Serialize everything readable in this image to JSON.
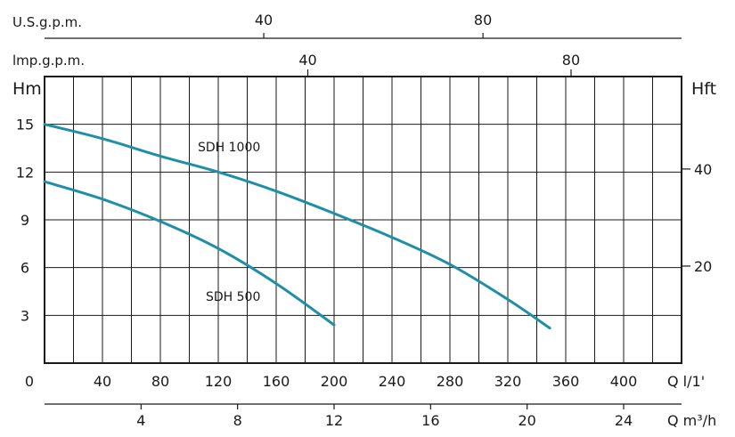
{
  "chart_data": {
    "type": "line",
    "units": {
      "left_axis": "Hm",
      "right_axis": "Hft",
      "flow_lpm": "Q l/1'",
      "flow_m3h": "Q m³/h",
      "us_gpm": "U.S.g.p.m.",
      "imp_gpm": "lmp.g.p.m."
    },
    "x_lpm_ticks": [
      "0",
      "40",
      "80",
      "120",
      "160",
      "200",
      "240",
      "280",
      "320",
      "360",
      "400"
    ],
    "x_m3h_ticks": [
      "4",
      "8",
      "12",
      "16",
      "20",
      "24"
    ],
    "x_usgpm_ticks": [
      "40",
      "80"
    ],
    "x_impgpm_ticks": [
      "40",
      "80"
    ],
    "y_m_ticks": [
      "15",
      "12",
      "9",
      "6",
      "3"
    ],
    "y_ft_ticks": [
      "40",
      "20"
    ],
    "xlim_lpm": [
      0,
      440
    ],
    "ylim_m": [
      0,
      18
    ],
    "grid": true,
    "series": [
      {
        "name": "SDH 1000",
        "x": [
          0,
          40,
          80,
          120,
          160,
          200,
          240,
          280,
          320,
          349
        ],
        "y": [
          15.0,
          14.1,
          13.0,
          12.0,
          10.8,
          9.4,
          7.9,
          6.2,
          4.0,
          2.2
        ]
      },
      {
        "name": "SDH 500",
        "x": [
          0,
          40,
          80,
          120,
          160,
          200
        ],
        "y": [
          11.4,
          10.3,
          8.9,
          7.2,
          5.0,
          2.4
        ]
      }
    ],
    "colors": {
      "curve": "#1f8fa8",
      "grid": "#1a1a1a"
    }
  }
}
